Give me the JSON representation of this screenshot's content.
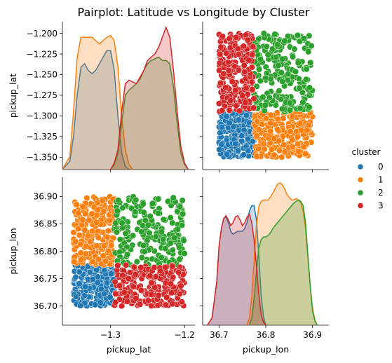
{
  "chart_data": {
    "type": "scatter",
    "title": "Pairplot: Latitude vs Longitude by Cluster",
    "variables": [
      "pickup_lat",
      "pickup_lon"
    ],
    "legend": {
      "title": "cluster",
      "placement": "right",
      "entries": [
        "0",
        "1",
        "2",
        "3"
      ]
    },
    "colors": {
      "0": "#1f77b4",
      "1": "#ff7f0e",
      "2": "#2ca02c",
      "3": "#d62728"
    },
    "axes": {
      "pickup_lat": {
        "range": [
          -1.365,
          -1.186
        ],
        "ticks": [
          -1.2,
          -1.225,
          -1.25,
          -1.275,
          -1.3,
          -1.325,
          -1.35
        ],
        "tick_labels": [
          "−1.200",
          "−1.225",
          "−1.250",
          "−1.275",
          "−1.300",
          "−1.325",
          "−1.350"
        ],
        "x_ticks": [
          -1.3,
          -1.2
        ],
        "x_tick_labels": [
          "−1.3",
          "−1.2"
        ]
      },
      "pickup_lon": {
        "range": [
          36.665,
          36.935
        ],
        "ticks": [
          36.7,
          36.75,
          36.8,
          36.85,
          36.9
        ],
        "tick_labels": [
          "36.70",
          "36.75",
          "36.80",
          "36.85",
          "36.90"
        ],
        "x_ticks": [
          36.7,
          36.8,
          36.9
        ],
        "x_tick_labels": [
          "36.7",
          "36.8",
          "36.9"
        ]
      }
    },
    "clusters": [
      {
        "name": "0",
        "lat_range": [
          -1.35,
          -1.295
        ],
        "lon_range": [
          36.7,
          36.775
        ]
      },
      {
        "name": "1",
        "lat_range": [
          -1.35,
          -1.295
        ],
        "lon_range": [
          36.775,
          36.9
        ]
      },
      {
        "name": "2",
        "lat_range": [
          -1.295,
          -1.2
        ],
        "lon_range": [
          36.775,
          36.9
        ]
      },
      {
        "name": "3",
        "lat_range": [
          -1.295,
          -1.2
        ],
        "lon_range": [
          36.7,
          36.775
        ]
      }
    ],
    "kde": {
      "pickup_lat": {
        "0": [
          [
            -1.365,
            0
          ],
          [
            -1.355,
            0.05
          ],
          [
            -1.35,
            0.2
          ],
          [
            -1.345,
            0.45
          ],
          [
            -1.34,
            0.62
          ],
          [
            -1.335,
            0.64
          ],
          [
            -1.33,
            0.6
          ],
          [
            -1.325,
            0.58
          ],
          [
            -1.32,
            0.6
          ],
          [
            -1.315,
            0.64
          ],
          [
            -1.31,
            0.68
          ],
          [
            -1.305,
            0.72
          ],
          [
            -1.3,
            0.72
          ],
          [
            -1.295,
            0.6
          ],
          [
            -1.29,
            0.32
          ],
          [
            -1.285,
            0.1
          ],
          [
            -1.28,
            0.02
          ],
          [
            -1.275,
            0
          ]
        ],
        "1": [
          [
            -1.365,
            0
          ],
          [
            -1.355,
            0.08
          ],
          [
            -1.35,
            0.35
          ],
          [
            -1.345,
            0.68
          ],
          [
            -1.34,
            0.8
          ],
          [
            -1.335,
            0.8
          ],
          [
            -1.33,
            0.8
          ],
          [
            -1.325,
            0.8
          ],
          [
            -1.32,
            0.78
          ],
          [
            -1.315,
            0.76
          ],
          [
            -1.31,
            0.78
          ],
          [
            -1.305,
            0.8
          ],
          [
            -1.3,
            0.81
          ],
          [
            -1.295,
            0.78
          ],
          [
            -1.29,
            0.62
          ],
          [
            -1.285,
            0.32
          ],
          [
            -1.28,
            0.12
          ],
          [
            -1.275,
            0.03
          ],
          [
            -1.27,
            0
          ]
        ],
        "2": [
          [
            -1.3,
            0
          ],
          [
            -1.295,
            0.03
          ],
          [
            -1.29,
            0.1
          ],
          [
            -1.285,
            0.28
          ],
          [
            -1.28,
            0.45
          ],
          [
            -1.275,
            0.48
          ],
          [
            -1.27,
            0.5
          ],
          [
            -1.265,
            0.52
          ],
          [
            -1.26,
            0.55
          ],
          [
            -1.255,
            0.6
          ],
          [
            -1.25,
            0.64
          ],
          [
            -1.245,
            0.66
          ],
          [
            -1.24,
            0.67
          ],
          [
            -1.235,
            0.68
          ],
          [
            -1.23,
            0.66
          ],
          [
            -1.225,
            0.66
          ],
          [
            -1.22,
            0.64
          ],
          [
            -1.215,
            0.5
          ],
          [
            -1.21,
            0.28
          ],
          [
            -1.205,
            0.1
          ],
          [
            -1.2,
            0.03
          ],
          [
            -1.195,
            0
          ]
        ],
        "3": [
          [
            -1.3,
            0
          ],
          [
            -1.295,
            0.04
          ],
          [
            -1.29,
            0.12
          ],
          [
            -1.285,
            0.35
          ],
          [
            -1.28,
            0.52
          ],
          [
            -1.275,
            0.54
          ],
          [
            -1.27,
            0.53
          ],
          [
            -1.265,
            0.52
          ],
          [
            -1.26,
            0.56
          ],
          [
            -1.255,
            0.6
          ],
          [
            -1.25,
            0.66
          ],
          [
            -1.245,
            0.68
          ],
          [
            -1.24,
            0.7
          ],
          [
            -1.235,
            0.74
          ],
          [
            -1.23,
            0.8
          ],
          [
            -1.225,
            0.86
          ],
          [
            -1.22,
            0.8
          ],
          [
            -1.215,
            0.6
          ],
          [
            -1.21,
            0.35
          ],
          [
            -1.205,
            0.14
          ],
          [
            -1.2,
            0.04
          ],
          [
            -1.195,
            0
          ]
        ]
      },
      "pickup_lon": {
        "0": [
          [
            36.675,
            0
          ],
          [
            36.685,
            0.05
          ],
          [
            36.695,
            0.3
          ],
          [
            36.7,
            0.55
          ],
          [
            36.705,
            0.68
          ],
          [
            36.71,
            0.75
          ],
          [
            36.715,
            0.76
          ],
          [
            36.72,
            0.72
          ],
          [
            36.725,
            0.66
          ],
          [
            36.73,
            0.64
          ],
          [
            36.735,
            0.65
          ],
          [
            36.74,
            0.66
          ],
          [
            36.745,
            0.66
          ],
          [
            36.75,
            0.66
          ],
          [
            36.755,
            0.68
          ],
          [
            36.76,
            0.72
          ],
          [
            36.765,
            0.8
          ],
          [
            36.77,
            0.84
          ],
          [
            36.775,
            0.84
          ],
          [
            36.78,
            0.74
          ],
          [
            36.785,
            0.5
          ],
          [
            36.79,
            0.22
          ],
          [
            36.795,
            0.06
          ],
          [
            36.8,
            0
          ]
        ],
        "1": [
          [
            36.76,
            0
          ],
          [
            36.765,
            0.05
          ],
          [
            36.77,
            0.2
          ],
          [
            36.775,
            0.45
          ],
          [
            36.78,
            0.7
          ],
          [
            36.785,
            0.83
          ],
          [
            36.79,
            0.87
          ],
          [
            36.795,
            0.88
          ],
          [
            36.8,
            0.88
          ],
          [
            36.805,
            0.88
          ],
          [
            36.81,
            0.9
          ],
          [
            36.815,
            0.93
          ],
          [
            36.82,
            0.96
          ],
          [
            36.825,
            0.99
          ],
          [
            36.83,
            1.0
          ],
          [
            36.835,
            0.99
          ],
          [
            36.84,
            0.96
          ],
          [
            36.845,
            0.92
          ],
          [
            36.85,
            0.9
          ],
          [
            36.855,
            0.88
          ],
          [
            36.86,
            0.88
          ],
          [
            36.865,
            0.89
          ],
          [
            36.87,
            0.88
          ],
          [
            36.875,
            0.86
          ],
          [
            36.88,
            0.8
          ],
          [
            36.885,
            0.68
          ],
          [
            36.89,
            0.48
          ],
          [
            36.895,
            0.28
          ],
          [
            36.9,
            0.12
          ],
          [
            36.905,
            0.04
          ],
          [
            36.91,
            0
          ]
        ],
        "2": [
          [
            36.765,
            0
          ],
          [
            36.77,
            0.05
          ],
          [
            36.775,
            0.18
          ],
          [
            36.78,
            0.38
          ],
          [
            36.785,
            0.54
          ],
          [
            36.79,
            0.6
          ],
          [
            36.795,
            0.62
          ],
          [
            36.8,
            0.62
          ],
          [
            36.805,
            0.63
          ],
          [
            36.81,
            0.65
          ],
          [
            36.815,
            0.68
          ],
          [
            36.82,
            0.7
          ],
          [
            36.825,
            0.72
          ],
          [
            36.83,
            0.74
          ],
          [
            36.835,
            0.76
          ],
          [
            36.84,
            0.78
          ],
          [
            36.845,
            0.8
          ],
          [
            36.85,
            0.82
          ],
          [
            36.855,
            0.84
          ],
          [
            36.86,
            0.86
          ],
          [
            36.865,
            0.87
          ],
          [
            36.87,
            0.88
          ],
          [
            36.875,
            0.87
          ],
          [
            36.88,
            0.84
          ],
          [
            36.885,
            0.72
          ],
          [
            36.89,
            0.5
          ],
          [
            36.895,
            0.28
          ],
          [
            36.9,
            0.1
          ],
          [
            36.905,
            0.03
          ],
          [
            36.91,
            0
          ]
        ],
        "3": [
          [
            36.675,
            0
          ],
          [
            36.685,
            0.05
          ],
          [
            36.695,
            0.3
          ],
          [
            36.7,
            0.55
          ],
          [
            36.705,
            0.68
          ],
          [
            36.71,
            0.75
          ],
          [
            36.715,
            0.77
          ],
          [
            36.72,
            0.74
          ],
          [
            36.725,
            0.7
          ],
          [
            36.73,
            0.72
          ],
          [
            36.735,
            0.76
          ],
          [
            36.74,
            0.77
          ],
          [
            36.745,
            0.74
          ],
          [
            36.75,
            0.7
          ],
          [
            36.755,
            0.72
          ],
          [
            36.76,
            0.76
          ],
          [
            36.765,
            0.78
          ],
          [
            36.77,
            0.72
          ],
          [
            36.775,
            0.6
          ],
          [
            36.78,
            0.42
          ],
          [
            36.785,
            0.22
          ],
          [
            36.79,
            0.08
          ],
          [
            36.795,
            0.02
          ],
          [
            36.8,
            0
          ]
        ]
      }
    }
  }
}
